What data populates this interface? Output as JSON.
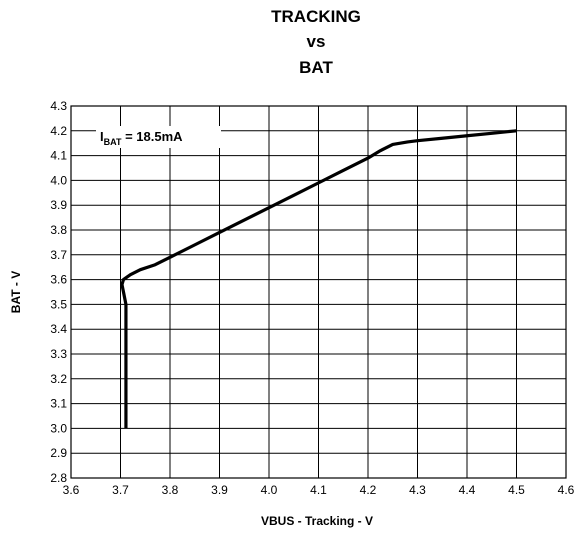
{
  "chart_data": {
    "type": "line",
    "title_lines": [
      "TRACKING",
      "vs",
      "BAT"
    ],
    "xlabel": "VBUS - Tracking - V",
    "ylabel": "BAT - V",
    "xlim": [
      3.6,
      4.6
    ],
    "ylim": [
      2.8,
      4.3
    ],
    "x_ticks": [
      "3.6",
      "3.7",
      "3.8",
      "3.9",
      "4.0",
      "4.1",
      "4.2",
      "4.3",
      "4.4",
      "4.5",
      "4.6"
    ],
    "y_ticks": [
      "2.8",
      "2.9",
      "3.0",
      "3.1",
      "3.2",
      "3.3",
      "3.4",
      "3.5",
      "3.6",
      "3.7",
      "3.8",
      "3.9",
      "4.0",
      "4.1",
      "4.2",
      "4.3"
    ],
    "grid": true,
    "annotation": {
      "main": "I",
      "sub": "BAT",
      "rest": " = 18.5mA"
    },
    "series": [
      {
        "points": [
          [
            3.711,
            3.0
          ],
          [
            3.711,
            3.2
          ],
          [
            3.711,
            3.4
          ],
          [
            3.711,
            3.5
          ],
          [
            3.706,
            3.55
          ],
          [
            3.703,
            3.58
          ],
          [
            3.706,
            3.6
          ],
          [
            3.72,
            3.62
          ],
          [
            3.74,
            3.64
          ],
          [
            3.77,
            3.66
          ],
          [
            3.8,
            3.69
          ],
          [
            3.85,
            3.74
          ],
          [
            3.9,
            3.79
          ],
          [
            3.95,
            3.84
          ],
          [
            4.0,
            3.89
          ],
          [
            4.05,
            3.94
          ],
          [
            4.1,
            3.99
          ],
          [
            4.15,
            4.04
          ],
          [
            4.2,
            4.09
          ],
          [
            4.225,
            4.12
          ],
          [
            4.25,
            4.145
          ],
          [
            4.28,
            4.155
          ],
          [
            4.3,
            4.16
          ],
          [
            4.35,
            4.17
          ],
          [
            4.4,
            4.18
          ],
          [
            4.45,
            4.19
          ],
          [
            4.5,
            4.2
          ]
        ]
      }
    ]
  }
}
